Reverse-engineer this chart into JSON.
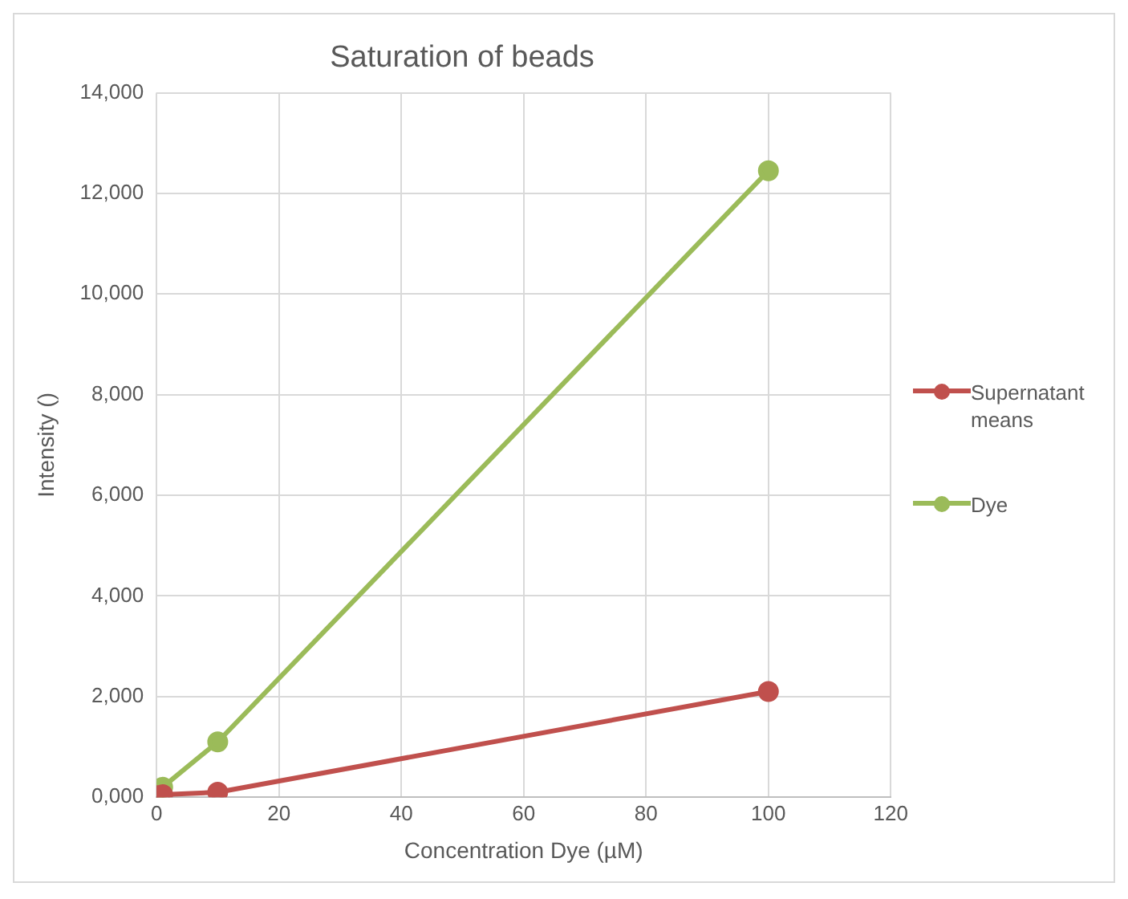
{
  "chart_data": {
    "type": "line",
    "title": "Saturation of beads",
    "xlabel": "Concentration Dye (µM)",
    "ylabel": "Intensity ()",
    "xlim": [
      0,
      120
    ],
    "xticks": [
      0,
      20,
      40,
      60,
      80,
      100,
      120
    ],
    "ylim": [
      0,
      14000
    ],
    "yticks": [
      {
        "value": 0,
        "label": "0,000"
      },
      {
        "value": 2000,
        "label": "2,000"
      },
      {
        "value": 4000,
        "label": "4,000"
      },
      {
        "value": 6000,
        "label": "6,000"
      },
      {
        "value": 8000,
        "label": "8,000"
      },
      {
        "value": 10000,
        "label": "10,000"
      },
      {
        "value": 12000,
        "label": "12,000"
      },
      {
        "value": 14000,
        "label": "14,000"
      }
    ],
    "grid": true,
    "legend": "right",
    "marker": "circle",
    "line_style": "solid",
    "series": [
      {
        "name": "Supernatant means",
        "color": "#c0504d",
        "x": [
          0,
          1,
          10,
          100
        ],
        "values": [
          30,
          50,
          100,
          2100
        ]
      },
      {
        "name": "Dye",
        "color": "#9bbb59",
        "x": [
          0,
          1,
          10,
          100
        ],
        "values": [
          80,
          200,
          1100,
          12450
        ]
      }
    ]
  }
}
